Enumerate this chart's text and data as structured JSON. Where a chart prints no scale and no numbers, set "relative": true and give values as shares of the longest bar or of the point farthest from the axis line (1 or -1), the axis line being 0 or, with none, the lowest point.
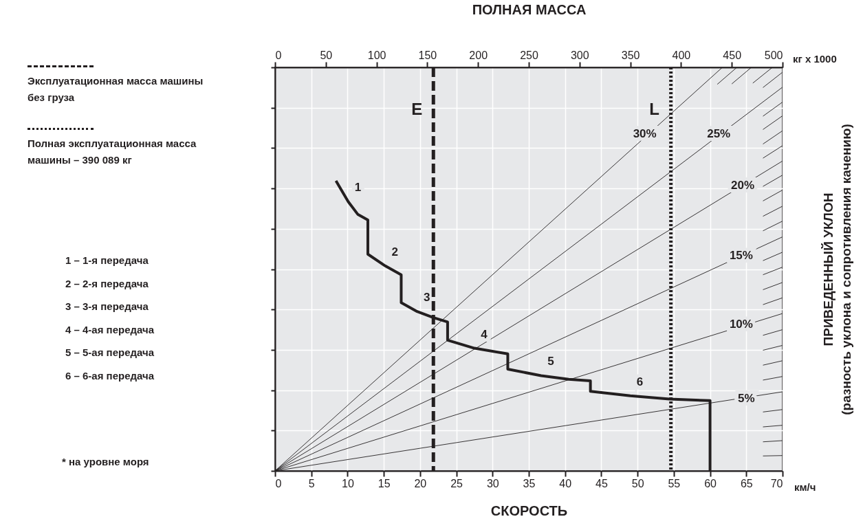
{
  "chart_data": {
    "type": "line",
    "relative": true,
    "xlabel": "СКОРОСТЬ",
    "x2label": "ПОЛНАЯ МАССА",
    "ylabel": "ПРИВЕДЕННЫЙ УКЛОН\n(разность уклона и сопротивления качению)",
    "xlim": [
      0,
      70
    ],
    "xticks": [
      0,
      5,
      10,
      15,
      20,
      25,
      30,
      35,
      40,
      45,
      50,
      55,
      60,
      65,
      70
    ],
    "x2lim": [
      0,
      500
    ],
    "x2ticks": [
      0,
      50,
      100,
      150,
      200,
      250,
      300,
      350,
      400,
      450,
      500
    ],
    "grid": true,
    "series": [
      {
        "color": "#231f20",
        "x": [
          8.4,
          10.1,
          11.4,
          12.8,
          12.8,
          15.2,
          17.4,
          17.4,
          19.6,
          21.8,
          23.8,
          23.8,
          27.5,
          32.1,
          32.1,
          36.7,
          40.5,
          43.5,
          43.5,
          49.0,
          54.4,
          60.0,
          60.0
        ],
        "values": [
          0.719,
          0.667,
          0.636,
          0.622,
          0.537,
          0.508,
          0.486,
          0.417,
          0.395,
          0.38,
          0.369,
          0.324,
          0.304,
          0.29,
          0.252,
          0.236,
          0.227,
          0.223,
          0.197,
          0.186,
          0.178,
          0.174,
          0
        ]
      },
      {
        "color": "#231f20",
        "x": [
          0,
          70
        ],
        "values": [
          0,
          0.196
        ]
      },
      {
        "color": "#231f20",
        "x": [
          0,
          70
        ],
        "values": [
          0,
          0.39
        ]
      },
      {
        "color": "#231f20",
        "x": [
          0,
          70
        ],
        "values": [
          0,
          0.58
        ]
      },
      {
        "color": "#231f20",
        "x": [
          0,
          70
        ],
        "values": [
          0,
          0.768
        ]
      },
      {
        "color": "#231f20",
        "x": [
          0,
          70
        ],
        "values": [
          0,
          0.951
        ]
      },
      {
        "color": "#231f20",
        "x": [
          0,
          61.7
        ],
        "values": [
          0,
          1
        ]
      },
      {
        "color": "#231f20",
        "x": [
          67.3,
          70
        ],
        "values": [
          0.037,
          0.038
        ]
      },
      {
        "color": "#231f20",
        "x": [
          67.3,
          70
        ],
        "values": [
          0.072,
          0.075
        ]
      },
      {
        "color": "#231f20",
        "x": [
          67.3,
          70
        ],
        "values": [
          0.109,
          0.113
        ]
      },
      {
        "color": "#231f20",
        "x": [
          67.3,
          70
        ],
        "values": [
          0.146,
          0.152
        ]
      },
      {
        "color": "#231f20",
        "x": [
          67.3,
          70
        ],
        "values": [
          0.225,
          0.234
        ]
      },
      {
        "color": "#231f20",
        "x": [
          67.3,
          70
        ],
        "values": [
          0.262,
          0.273
        ]
      },
      {
        "color": "#231f20",
        "x": [
          67.3,
          70
        ],
        "values": [
          0.299,
          0.311
        ]
      },
      {
        "color": "#231f20",
        "x": [
          67.3,
          70
        ],
        "values": [
          0.336,
          0.35
        ]
      },
      {
        "color": "#231f20",
        "x": [
          67.3,
          70
        ],
        "values": [
          0.412,
          0.429
        ]
      },
      {
        "color": "#231f20",
        "x": [
          67.3,
          70
        ],
        "values": [
          0.449,
          0.467
        ]
      },
      {
        "color": "#231f20",
        "x": [
          67.3,
          70
        ],
        "values": [
          0.486,
          0.505
        ]
      },
      {
        "color": "#231f20",
        "x": [
          67.3,
          70
        ],
        "values": [
          0.521,
          0.542
        ]
      },
      {
        "color": "#231f20",
        "x": [
          67.3,
          70
        ],
        "values": [
          0.595,
          0.619
        ]
      },
      {
        "color": "#231f20",
        "x": [
          67.3,
          70
        ],
        "values": [
          0.631,
          0.656
        ]
      },
      {
        "color": "#231f20",
        "x": [
          67.3,
          70
        ],
        "values": [
          0.669,
          0.696
        ]
      },
      {
        "color": "#231f20",
        "x": [
          67.3,
          70
        ],
        "values": [
          0.705,
          0.733
        ]
      },
      {
        "color": "#231f20",
        "x": [
          67.3,
          70
        ],
        "values": [
          0.775,
          0.806
        ]
      },
      {
        "color": "#231f20",
        "x": [
          67.3,
          70
        ],
        "values": [
          0.81,
          0.843
        ]
      },
      {
        "color": "#231f20",
        "x": [
          67.3,
          70
        ],
        "values": [
          0.846,
          0.88
        ]
      },
      {
        "color": "#231f20",
        "x": [
          67.3,
          70
        ],
        "values": [
          0.879,
          0.914
        ]
      },
      {
        "color": "#231f20",
        "x": [
          67.3,
          70
        ],
        "values": [
          0.95,
          0.988
        ]
      },
      {
        "color": "#231f20",
        "x": [
          65.9,
          68.6
        ],
        "values": [
          0.961,
          1
        ]
      },
      {
        "color": "#231f20",
        "x": [
          63.0,
          65.7
        ],
        "values": [
          0.959,
          1
        ]
      },
      {
        "color": "#231f20",
        "x": [
          61.0,
          63.7
        ],
        "values": [
          0.958,
          1
        ]
      }
    ],
    "ref_lines": [
      {
        "axis": "x2",
        "value": 156,
        "label": "E",
        "line_style": "dashed",
        "color": "#231f20"
      },
      {
        "axis": "x2",
        "value": 390,
        "label": "L",
        "line_style": "dotted",
        "color": "#231f20"
      }
    ],
    "annotations": [
      "Эксплуатационная масса машины без груза",
      "Полная эксплуатационная масса машины – 390 089 кг",
      "1 – 1-я передача",
      "2 – 2-я передача",
      "3 – 3-я передача",
      "4 – 4-ая передача",
      "5 – 5-ая передача",
      "6 – 6-ая передача",
      "* на уровне моря",
      "кг x 1000",
      "км/ч",
      {
        "text": "1",
        "x": 10.1,
        "y": 0.667
      },
      {
        "text": "2",
        "x": 15.2,
        "y": 0.508
      },
      {
        "text": "3",
        "x": 19.6,
        "y": 0.395
      },
      {
        "text": "4",
        "x": 27.5,
        "y": 0.304
      },
      {
        "text": "5",
        "x": 36.7,
        "y": 0.236
      },
      {
        "text": "6",
        "x": 49.0,
        "y": 0.186
      },
      {
        "text": "30%",
        "x": 51.0,
        "y": 0.835
      },
      {
        "text": "25%",
        "x": 61.2,
        "y": 0.835
      },
      {
        "text": "20%",
        "x": 64.5,
        "y": 0.707
      },
      {
        "text": "15%",
        "x": 64.3,
        "y": 0.533
      },
      {
        "text": "10%",
        "x": 64.3,
        "y": 0.363
      },
      {
        "text": "5%",
        "x": 65.0,
        "y": 0.179
      }
    ]
  }
}
